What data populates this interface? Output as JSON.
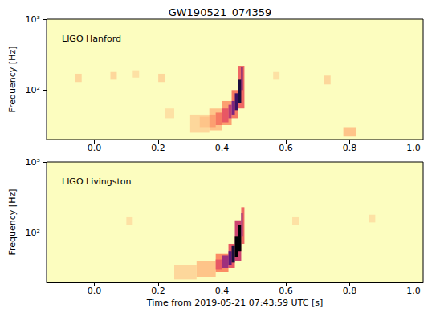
{
  "chart_data": {
    "type": "heatmap",
    "title": "GW190521_074359",
    "xlabel": "Time from 2019-05-21 07:43:59 UTC [s]",
    "ylabel": "Frequency [Hz]",
    "log": "y",
    "grid": false,
    "xlim": [
      -0.15,
      1.03
    ],
    "xticks": [
      {
        "value": 0,
        "label": "0.0"
      },
      {
        "value": 0.2,
        "label": "0.2"
      },
      {
        "value": 0.4,
        "label": "0.4"
      },
      {
        "value": 0.6,
        "label": "0.6"
      },
      {
        "value": 0.8,
        "label": "0.8"
      },
      {
        "value": 1.0,
        "label": "1.0"
      }
    ],
    "ylim": [
      20,
      1000
    ],
    "yticks": [
      {
        "value": 100,
        "label": "10²"
      },
      {
        "value": 1000,
        "label": "10³"
      }
    ],
    "zlim": [
      0,
      25
    ],
    "panels": [
      {
        "title": "LIGO Hanford",
        "cells": [
          [
            -0.06,
            -0.04,
            130,
            170,
            2
          ],
          [
            0.05,
            0.07,
            140,
            180,
            2
          ],
          [
            0.2,
            0.22,
            130,
            170,
            2
          ],
          [
            0.22,
            0.25,
            40,
            55,
            1.5
          ],
          [
            0.72,
            0.74,
            120,
            160,
            2
          ],
          [
            0.78,
            0.82,
            22,
            30,
            3
          ],
          [
            0.56,
            0.58,
            140,
            180,
            1.5
          ],
          [
            0.12,
            0.14,
            150,
            190,
            1.5
          ],
          [
            0.3,
            0.36,
            25,
            45,
            2
          ],
          [
            0.36,
            0.4,
            27,
            55,
            3
          ],
          [
            0.4,
            0.43,
            32,
            70,
            5
          ],
          [
            0.43,
            0.45,
            40,
            100,
            7
          ],
          [
            0.45,
            0.47,
            55,
            220,
            8
          ],
          [
            0.33,
            0.36,
            30,
            42,
            3
          ],
          [
            0.36,
            0.38,
            30,
            45,
            5
          ],
          [
            0.38,
            0.4,
            32,
            48,
            7
          ],
          [
            0.4,
            0.42,
            35,
            55,
            9
          ],
          [
            0.42,
            0.43,
            40,
            62,
            12
          ],
          [
            0.43,
            0.44,
            45,
            70,
            16
          ],
          [
            0.44,
            0.45,
            52,
            90,
            20
          ],
          [
            0.45,
            0.46,
            65,
            140,
            22
          ],
          [
            0.46,
            0.465,
            100,
            210,
            18
          ]
        ]
      },
      {
        "title": "LIGO Livingston",
        "cells": [
          [
            0.1,
            0.12,
            130,
            170,
            1.5
          ],
          [
            0.62,
            0.64,
            130,
            170,
            1.5
          ],
          [
            0.86,
            0.88,
            140,
            180,
            1.5
          ],
          [
            0.25,
            0.32,
            22,
            35,
            2
          ],
          [
            0.32,
            0.38,
            24,
            40,
            3
          ],
          [
            0.38,
            0.42,
            28,
            50,
            6
          ],
          [
            0.42,
            0.44,
            32,
            70,
            9
          ],
          [
            0.44,
            0.46,
            40,
            150,
            11
          ],
          [
            0.46,
            0.47,
            70,
            230,
            8
          ],
          [
            0.38,
            0.4,
            30,
            42,
            9
          ],
          [
            0.4,
            0.42,
            32,
            48,
            14
          ],
          [
            0.42,
            0.43,
            35,
            55,
            18
          ],
          [
            0.43,
            0.44,
            38,
            65,
            22
          ],
          [
            0.44,
            0.45,
            45,
            90,
            25
          ],
          [
            0.45,
            0.46,
            55,
            130,
            25
          ],
          [
            0.46,
            0.465,
            90,
            190,
            15
          ]
        ]
      }
    ]
  }
}
